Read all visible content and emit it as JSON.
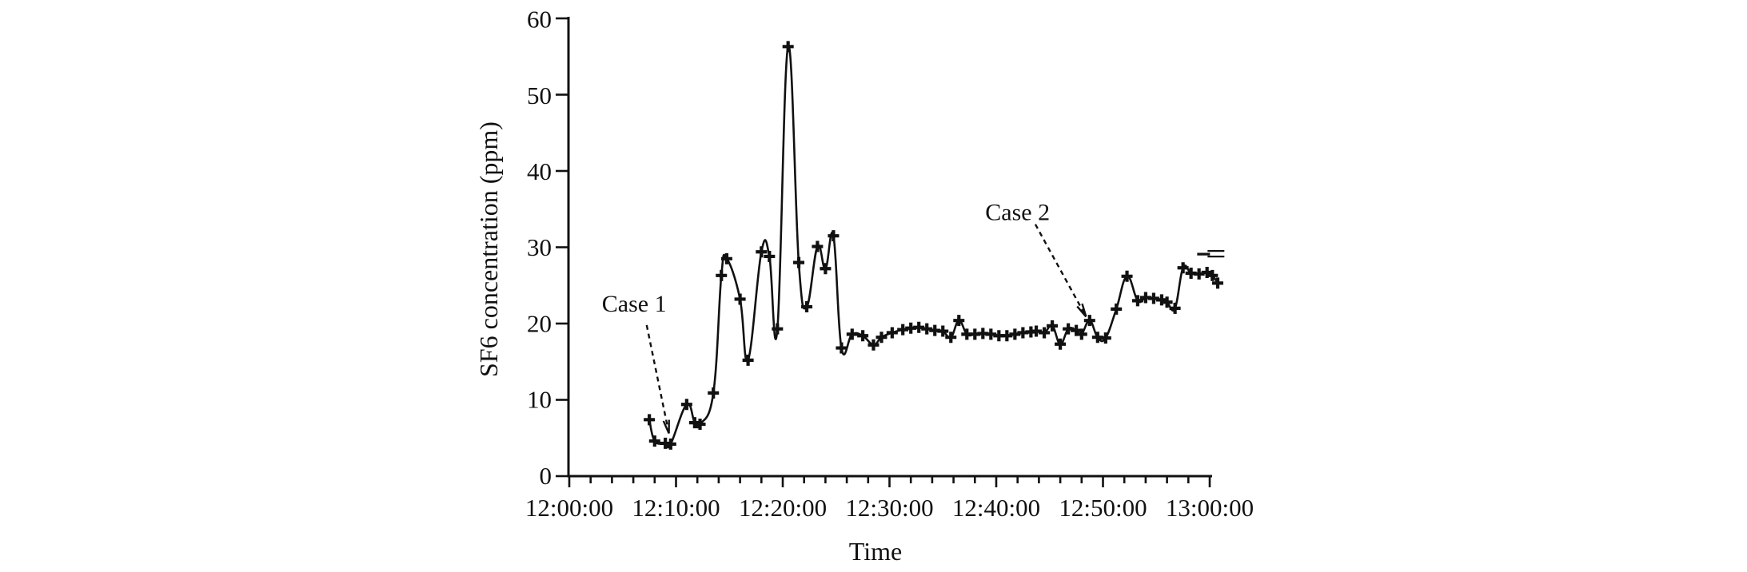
{
  "figure": {
    "background_color": "#ffffff",
    "ink_color": "#111111"
  },
  "chart_data": {
    "type": "line",
    "title": "",
    "xlabel": "Time",
    "ylabel": "SF6 concentration (ppm)",
    "x_range": [
      "12:00:00",
      "13:00:00"
    ],
    "ylim": [
      0,
      60
    ],
    "grid": "off",
    "legend": "none",
    "line_style": "smooth-spline",
    "marker": "plus",
    "x_tick_labels": [
      "12:00:00",
      "12:10:00",
      "12:20:00",
      "12:30:00",
      "12:40:00",
      "12:50:00",
      "13:00:00"
    ],
    "x_minor_tick_interval_minutes": 2,
    "y_tick_labels": [
      "0",
      "10",
      "20",
      "30",
      "40",
      "50",
      "60"
    ],
    "series": [
      {
        "name": "SF6 concentration",
        "points": [
          {
            "t": "12:07:30",
            "v": 7.4
          },
          {
            "t": "12:08:00",
            "v": 4.6
          },
          {
            "t": "12:09:00",
            "v": 4.3
          },
          {
            "t": "12:09:30",
            "v": 4.2
          },
          {
            "t": "12:11:00",
            "v": 9.4
          },
          {
            "t": "12:11:45",
            "v": 7.0
          },
          {
            "t": "12:12:15",
            "v": 6.8
          },
          {
            "t": "12:13:30",
            "v": 10.9
          },
          {
            "t": "12:14:15",
            "v": 26.3
          },
          {
            "t": "12:14:45",
            "v": 28.5
          },
          {
            "t": "12:16:00",
            "v": 23.2
          },
          {
            "t": "12:16:45",
            "v": 15.2
          },
          {
            "t": "12:18:00",
            "v": 29.4
          },
          {
            "t": "12:18:45",
            "v": 28.8
          },
          {
            "t": "12:19:30",
            "v": 19.3
          },
          {
            "t": "12:20:30",
            "v": 56.3
          },
          {
            "t": "12:21:30",
            "v": 28.0
          },
          {
            "t": "12:22:15",
            "v": 22.2
          },
          {
            "t": "12:23:15",
            "v": 30.1
          },
          {
            "t": "12:24:00",
            "v": 27.2
          },
          {
            "t": "12:24:45",
            "v": 31.5
          },
          {
            "t": "12:25:30",
            "v": 16.8
          },
          {
            "t": "12:26:30",
            "v": 18.6
          },
          {
            "t": "12:27:30",
            "v": 18.4
          },
          {
            "t": "12:28:30",
            "v": 17.2
          },
          {
            "t": "12:29:15",
            "v": 18.2
          },
          {
            "t": "12:30:15",
            "v": 18.8
          },
          {
            "t": "12:31:15",
            "v": 19.2
          },
          {
            "t": "12:32:00",
            "v": 19.4
          },
          {
            "t": "12:32:45",
            "v": 19.5
          },
          {
            "t": "12:33:30",
            "v": 19.3
          },
          {
            "t": "12:34:15",
            "v": 19.1
          },
          {
            "t": "12:35:00",
            "v": 19.0
          },
          {
            "t": "12:35:45",
            "v": 18.2
          },
          {
            "t": "12:36:30",
            "v": 20.4
          },
          {
            "t": "12:37:15",
            "v": 18.6
          },
          {
            "t": "12:38:00",
            "v": 18.6
          },
          {
            "t": "12:38:45",
            "v": 18.7
          },
          {
            "t": "12:39:30",
            "v": 18.6
          },
          {
            "t": "12:40:15",
            "v": 18.4
          },
          {
            "t": "12:41:00",
            "v": 18.4
          },
          {
            "t": "12:41:45",
            "v": 18.6
          },
          {
            "t": "12:42:30",
            "v": 18.8
          },
          {
            "t": "12:43:15",
            "v": 18.9
          },
          {
            "t": "12:43:45",
            "v": 19.0
          },
          {
            "t": "12:44:30",
            "v": 18.8
          },
          {
            "t": "12:45:15",
            "v": 19.7
          },
          {
            "t": "12:46:00",
            "v": 17.3
          },
          {
            "t": "12:46:45",
            "v": 19.3
          },
          {
            "t": "12:47:30",
            "v": 19.1
          },
          {
            "t": "12:48:00",
            "v": 18.6
          },
          {
            "t": "12:48:45",
            "v": 20.4
          },
          {
            "t": "12:49:30",
            "v": 18.2
          },
          {
            "t": "12:50:15",
            "v": 18.1
          },
          {
            "t": "12:51:15",
            "v": 21.9
          },
          {
            "t": "12:52:15",
            "v": 26.2
          },
          {
            "t": "12:53:15",
            "v": 23.0
          },
          {
            "t": "12:54:00",
            "v": 23.4
          },
          {
            "t": "12:54:45",
            "v": 23.3
          },
          {
            "t": "12:55:30",
            "v": 23.1
          },
          {
            "t": "12:56:00",
            "v": 22.8
          },
          {
            "t": "12:56:45",
            "v": 22.0
          },
          {
            "t": "12:57:30",
            "v": 27.3
          },
          {
            "t": "12:58:15",
            "v": 26.6
          },
          {
            "t": "12:59:00",
            "v": 26.5
          },
          {
            "t": "12:59:45",
            "v": 26.7
          },
          {
            "t": "13:00:15",
            "v": 26.3
          },
          {
            "t": "13:00:45",
            "v": 25.3
          }
        ]
      }
    ],
    "annotations": [
      {
        "label": "Case 1",
        "label_t": "12:06:05",
        "label_v": 22.6,
        "arrow_from_t": "12:07:15",
        "arrow_from_v": 19.8,
        "arrow_to_t": "12:09:20",
        "arrow_to_v": 5.6,
        "style": "dashed-arrow"
      },
      {
        "label": "Case 2",
        "label_t": "12:42:00",
        "label_v": 34.6,
        "arrow_from_t": "12:43:40",
        "arrow_from_v": 33.0,
        "arrow_to_t": "12:48:25",
        "arrow_to_v": 20.9,
        "style": "dashed-arrow"
      }
    ],
    "extra_marks": [
      {
        "name": "double-dash-mark",
        "t": "12:59:30",
        "v": 29.2
      }
    ]
  }
}
